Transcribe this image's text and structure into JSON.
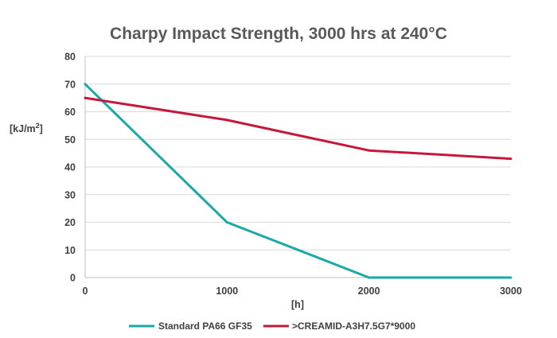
{
  "chart_data": {
    "type": "line",
    "title": "Charpy Impact Strength, 3000 hrs at 240°C",
    "xlabel": "[h]",
    "ylabel_main": "[kJ/m",
    "ylabel_sup": "2",
    "ylabel_end": "]",
    "x": [
      0,
      1000,
      2000,
      3000
    ],
    "xlim": [
      0,
      3000
    ],
    "ylim": [
      0,
      80
    ],
    "y_ticks": [
      0,
      10,
      20,
      30,
      40,
      50,
      60,
      70,
      80
    ],
    "x_ticks": [
      0,
      1000,
      2000,
      3000
    ],
    "grid": true,
    "legend_position": "bottom",
    "series": [
      {
        "name": "Standard PA66 GF35",
        "x": [
          0,
          1000,
          2000,
          3000
        ],
        "values": [
          70,
          20,
          0,
          0
        ],
        "color": "#1aa9a6"
      },
      {
        "name": ">CREAMID-A3H7.5G7*9000",
        "x": [
          0,
          1000,
          2000,
          3000
        ],
        "values": [
          65,
          57,
          46,
          43
        ],
        "color": "#c4183c"
      }
    ]
  }
}
